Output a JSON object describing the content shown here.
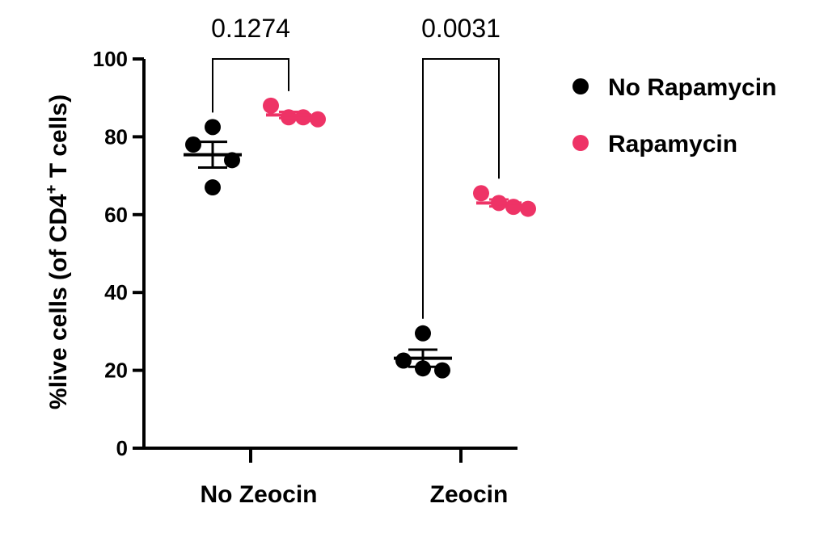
{
  "chart_data": {
    "type": "scatter",
    "title": "",
    "ylabel_prefix": "%live cells (of CD4",
    "ylabel_sup": "+",
    "ylabel_suffix": " T cells)",
    "xlabel": "",
    "ylim": [
      0,
      100
    ],
    "yticks": [
      "0",
      "20",
      "40",
      "60",
      "80",
      "100"
    ],
    "categories": [
      "No Zeocin",
      "Zeocin"
    ],
    "legend_position": "right",
    "series": [
      {
        "name": "No Rapamycin",
        "color": "#000000",
        "points": [
          {
            "category": "No Zeocin",
            "values": [
              82.5,
              78.0,
              74.0,
              67.0
            ],
            "mean": 75.4,
            "sem": 3.3
          },
          {
            "category": "Zeocin",
            "values": [
              29.5,
              22.5,
              20.5,
              20.0
            ],
            "mean": 23.1,
            "sem": 2.2
          }
        ]
      },
      {
        "name": "Rapamycin",
        "color": "#ee3366",
        "points": [
          {
            "category": "No Zeocin",
            "values": [
              88.0,
              85.0,
              85.0,
              84.5
            ],
            "mean": 85.6,
            "sem": 0.8
          },
          {
            "category": "Zeocin",
            "values": [
              65.5,
              63.0,
              62.0,
              61.5
            ],
            "mean": 63.0,
            "sem": 0.9
          }
        ]
      }
    ],
    "comparisons": [
      {
        "category": "No Zeocin",
        "p_value": "0.1274"
      },
      {
        "category": "Zeocin",
        "p_value": "0.0031"
      }
    ]
  }
}
